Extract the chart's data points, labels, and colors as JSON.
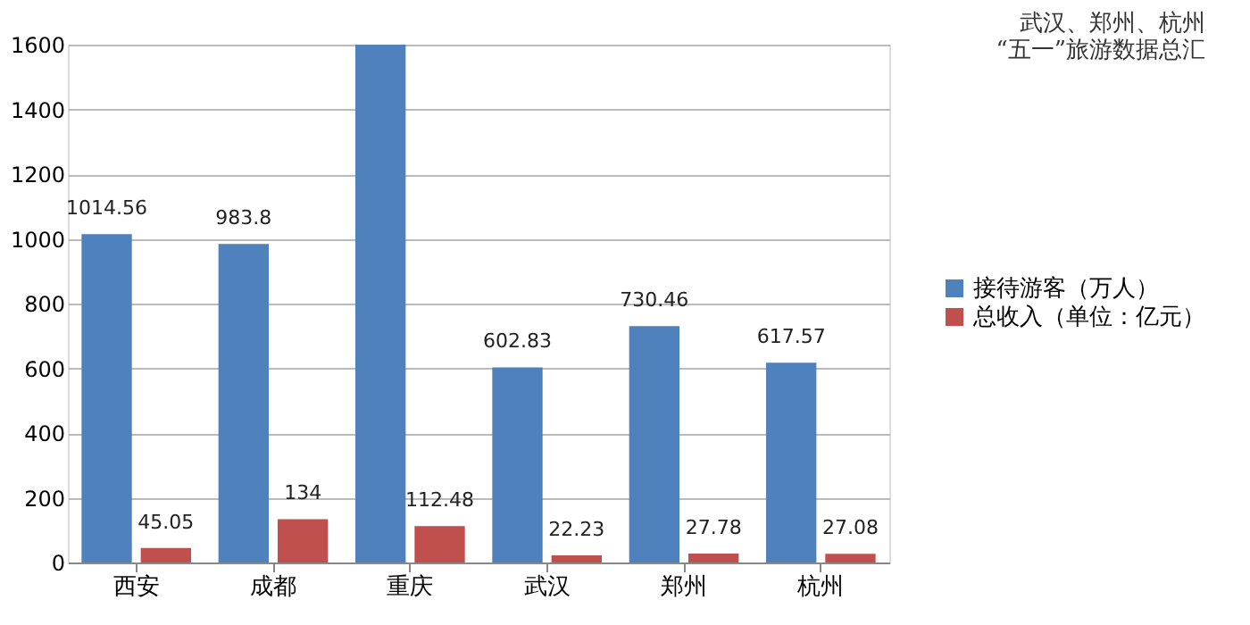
{
  "chart_data": {
    "type": "bar",
    "title": "武汉、郑州、杭州\n“五一”旅游数据总汇",
    "categories": [
      "西安",
      "成都",
      "重庆",
      "武汉",
      "郑州",
      "杭州"
    ],
    "series": [
      {
        "name": "接待游客（万人）",
        "color": "#4f81bd",
        "values": [
          1014.56,
          983.8,
          1600,
          602.83,
          730.46,
          617.57
        ],
        "value_labels": [
          "1014.56",
          "983.8",
          null,
          "602.83",
          "730.46",
          "617.57"
        ]
      },
      {
        "name": "总收入（单位：亿元）",
        "color": "#c0504d",
        "values": [
          45.05,
          134,
          112.48,
          22.23,
          27.78,
          27.08
        ],
        "value_labels": [
          "45.05",
          "134",
          "112.48",
          "22.23",
          "27.78",
          "27.08"
        ]
      }
    ],
    "ylim": [
      0,
      1600
    ],
    "yticks": [
      0,
      200,
      400,
      600,
      800,
      1000,
      1200,
      1400,
      1600
    ],
    "grid": "y",
    "legend": "right"
  }
}
